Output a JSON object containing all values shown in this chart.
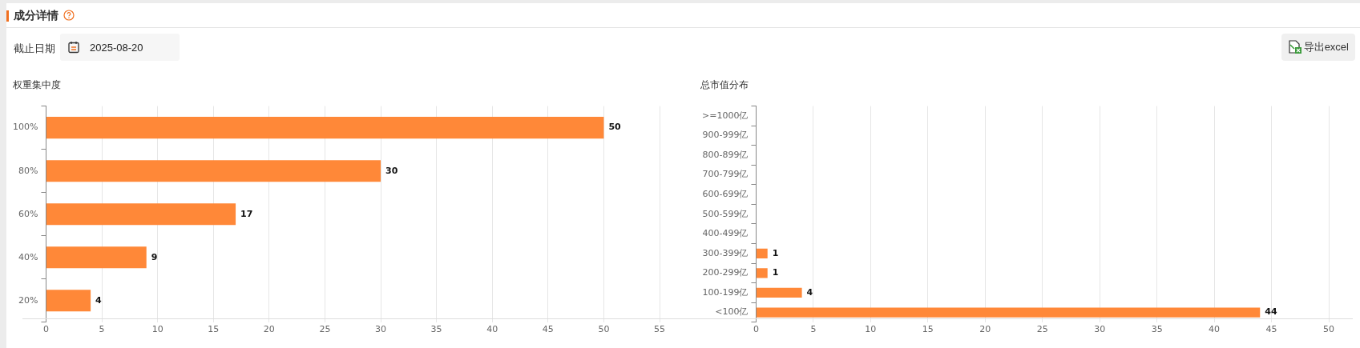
{
  "chart_data": [
    {
      "type": "other",
      "title": "成分详情",
      "annotations": [
        "截止日期",
        "2025-08-20",
        "导出excel"
      ]
    },
    {
      "type": "bar",
      "orientation": "horizontal",
      "title": "权重集中度",
      "categories": [
        "100%",
        "80%",
        "60%",
        "40%",
        "20%"
      ],
      "values": [
        50,
        30,
        17,
        9,
        4
      ],
      "color": "#ff8838",
      "xlim": [
        0,
        55
      ],
      "xticks": [
        0,
        5,
        10,
        15,
        20,
        25,
        30,
        35,
        40,
        45,
        50,
        55
      ],
      "grid": "x",
      "data_labels": true,
      "legend": false
    },
    {
      "type": "bar",
      "orientation": "horizontal",
      "title": "总市值分布",
      "categories": [
        ">=1000亿",
        "900-999亿",
        "800-899亿",
        "700-799亿",
        "600-699亿",
        "500-599亿",
        "400-499亿",
        "300-399亿",
        "200-299亿",
        "100-199亿",
        "<100亿"
      ],
      "values": [
        null,
        null,
        null,
        null,
        null,
        null,
        null,
        1,
        1,
        4,
        44
      ],
      "color": "#ff8838",
      "xlim": [
        0,
        50
      ],
      "xticks": [
        0,
        5,
        10,
        15,
        20,
        25,
        30,
        35,
        40,
        45,
        50
      ],
      "grid": "x",
      "data_labels": true,
      "legend": false
    }
  ]
}
